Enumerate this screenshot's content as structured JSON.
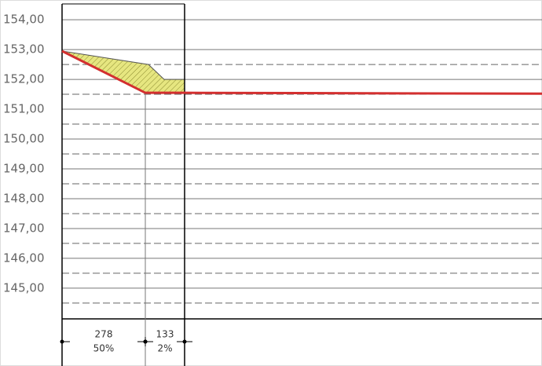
{
  "chart_data": {
    "type": "profile",
    "xlim": [
      0,
      611
    ],
    "ylim": [
      143.97,
      154.53
    ],
    "yticks": [
      {
        "value": 154,
        "label": "154,00"
      },
      {
        "value": 153,
        "label": "153,00"
      },
      {
        "value": 152,
        "label": "152,00"
      },
      {
        "value": 151,
        "label": "151,00"
      },
      {
        "value": 150,
        "label": "150,00"
      },
      {
        "value": 149,
        "label": "149,00"
      },
      {
        "value": 148,
        "label": "148,00"
      },
      {
        "value": 147,
        "label": "147,00"
      },
      {
        "value": 146,
        "label": "146,00"
      },
      {
        "value": 145,
        "label": "145,00"
      }
    ],
    "minor_yticks": [
      152.5,
      151.5,
      150.5,
      149.5,
      148.5,
      147.5,
      146.5,
      145.5,
      144.5
    ],
    "grid": true,
    "fill_area": {
      "color": "#e6e680",
      "x": [
        0,
        110,
        130,
        156,
        156,
        106
      ],
      "values": [
        152.95,
        152.5,
        152.0,
        152.0,
        151.55,
        151.55
      ]
    },
    "series": [
      {
        "color": "#d32f2f",
        "x": [
          0,
          106,
          156,
          611
        ],
        "values": [
          152.95,
          151.55,
          151.55,
          151.52
        ]
      }
    ],
    "dimensions": [
      {
        "length": "278",
        "slope": "50%",
        "x": [
          0,
          106
        ]
      },
      {
        "length": "133",
        "slope": "2%",
        "x": [
          106,
          156
        ]
      }
    ]
  }
}
